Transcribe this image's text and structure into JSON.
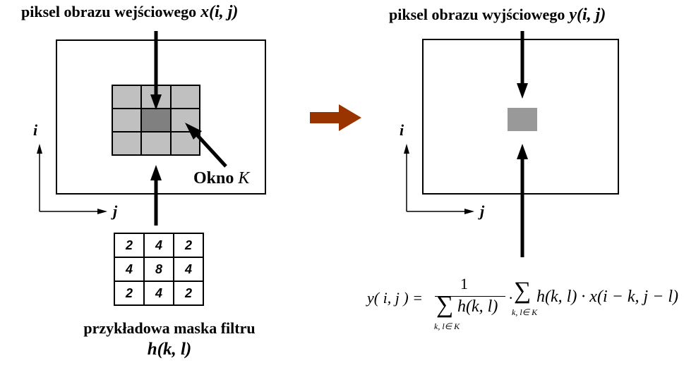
{
  "left": {
    "title": "piksel obrazu wejściowego",
    "title_var": "x(i, j)",
    "window_label_word": "Okno",
    "window_label_var": "K",
    "axis_i": "i",
    "axis_j": "j",
    "mask_values": [
      [
        "2",
        "4",
        "2"
      ],
      [
        "4",
        "8",
        "4"
      ],
      [
        "2",
        "4",
        "2"
      ]
    ],
    "mask_caption": "przykładowa maska filtru",
    "mask_symbol": "h(k, l)"
  },
  "right": {
    "title": "piksel obrazu wyjściowego",
    "title_var": "y(i, j)",
    "axis_i": "i",
    "axis_j": "j"
  },
  "formula": {
    "lhs": "y( i, j ) =",
    "numerator": "1",
    "denominator": "h(k, l)",
    "sum_sub": "k, l∈ K",
    "mid": "·",
    "rhs_term": "h(k, l) · x(i − k, j − l)"
  },
  "colors": {
    "cell_light": "#c0c0c0",
    "cell_center": "#808080",
    "output_pixel": "#999999",
    "transition_arrow": "#993300",
    "line": "#000000"
  }
}
